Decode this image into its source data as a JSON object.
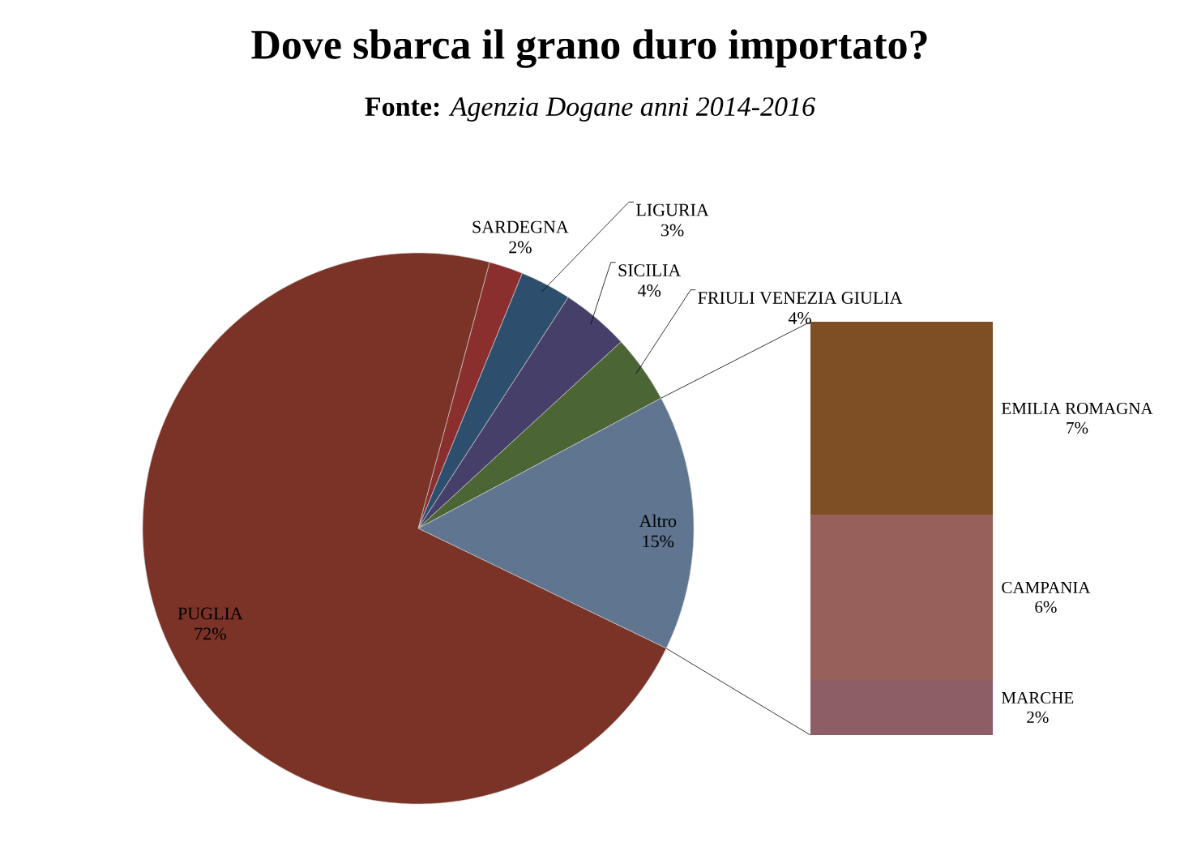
{
  "chart_data": [
    {
      "type": "pie",
      "title": "Dove sbarca il grano duro importato?",
      "subtitle": "**Fonte:** *Agenzia Dogane anni 2014-2016*",
      "categories": [
        "SARDEGNA",
        "LIGURIA",
        "SICILIA",
        "FRIULI VENEZIA GIULIA",
        "Altro",
        "PUGLIA"
      ],
      "values": [
        2,
        3,
        4,
        4,
        15,
        72
      ],
      "value_labels": [
        "2%",
        "3%",
        "4%",
        "4%",
        "15%",
        "72%"
      ],
      "colors": [
        "#8a2e2e",
        "#2e4e6e",
        "#463f6a",
        "#4b6535",
        "#5f7590",
        "#7a3326"
      ]
    },
    {
      "type": "other",
      "categories": [
        "EMILIA ROMAGNA",
        "CAMPANIA",
        "MARCHE"
      ],
      "values": [
        7,
        6,
        2
      ],
      "value_labels": [
        "7%",
        "6%",
        "2%"
      ],
      "colors": [
        "#7e4e25",
        "#97605a",
        "#8d5e66"
      ]
    }
  ]
}
